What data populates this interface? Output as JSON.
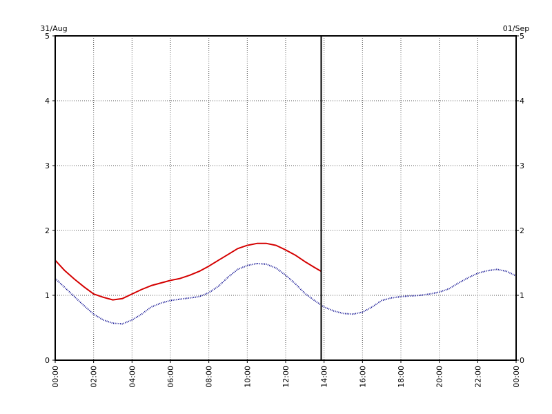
{
  "chart_data": {
    "type": "line",
    "date_labels": {
      "left": "31/Aug",
      "right": "01/Sep"
    },
    "xlabel": "",
    "ylabel": "",
    "x_ticks": [
      "00:00",
      "02:00",
      "04:00",
      "06:00",
      "08:00",
      "10:00",
      "12:00",
      "14:00",
      "16:00",
      "18:00",
      "20:00",
      "22:00",
      "00:00"
    ],
    "xlim_hours": [
      0,
      24
    ],
    "ylim": [
      0,
      5
    ],
    "y_ticks": [
      "0",
      "1",
      "2",
      "3",
      "4",
      "5"
    ],
    "grid": true,
    "grid_style": "dotted",
    "now_marker_hours": 13.85,
    "series": [
      {
        "color": "#d40000",
        "style": "solid",
        "x_hours": [
          0,
          0.5,
          1,
          1.5,
          2,
          2.5,
          3,
          3.5,
          4,
          4.5,
          5,
          5.5,
          6,
          6.5,
          7,
          7.5,
          8,
          8.5,
          9,
          9.5,
          10,
          10.5,
          11,
          11.5,
          12,
          12.5,
          13,
          13.5,
          13.85
        ],
        "values": [
          1.54,
          1.38,
          1.25,
          1.13,
          1.02,
          0.97,
          0.93,
          0.95,
          1.02,
          1.09,
          1.15,
          1.19,
          1.23,
          1.26,
          1.31,
          1.37,
          1.45,
          1.54,
          1.63,
          1.72,
          1.77,
          1.8,
          1.8,
          1.77,
          1.7,
          1.62,
          1.52,
          1.43,
          1.37
        ]
      },
      {
        "color": "#00008b",
        "style": "dotted",
        "x_hours": [
          0,
          0.5,
          1,
          1.5,
          2,
          2.5,
          3,
          3.5,
          4,
          4.5,
          5,
          5.5,
          6,
          6.5,
          7,
          7.5,
          8,
          8.5,
          9,
          9.5,
          10,
          10.5,
          11,
          11.5,
          12,
          12.5,
          13,
          13.5,
          14,
          14.5,
          15,
          15.5,
          16,
          16.5,
          17,
          17.5,
          18,
          18.5,
          19,
          19.5,
          20,
          20.5,
          21,
          21.5,
          22,
          22.5,
          23,
          23.5,
          24
        ],
        "values": [
          1.26,
          1.12,
          0.98,
          0.84,
          0.71,
          0.62,
          0.57,
          0.56,
          0.62,
          0.71,
          0.82,
          0.88,
          0.92,
          0.94,
          0.96,
          0.98,
          1.04,
          1.14,
          1.28,
          1.4,
          1.46,
          1.49,
          1.48,
          1.42,
          1.31,
          1.18,
          1.03,
          0.92,
          0.82,
          0.76,
          0.72,
          0.71,
          0.74,
          0.82,
          0.92,
          0.96,
          0.98,
          0.99,
          1.0,
          1.02,
          1.05,
          1.1,
          1.19,
          1.27,
          1.34,
          1.38,
          1.4,
          1.37,
          1.3
        ]
      }
    ]
  }
}
